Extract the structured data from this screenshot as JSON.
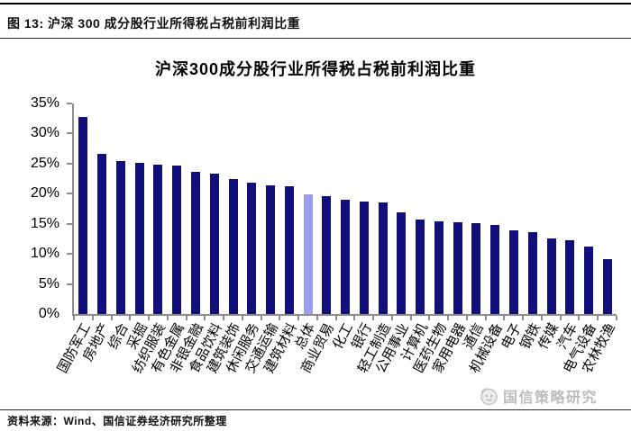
{
  "page": {
    "figure_label": "图 13: 沪深 300 成分股行业所得税占税前利润比重",
    "source_note": "资料来源：Wind、国信证券经济研究所整理",
    "watermark": "国信策略研究",
    "watermark_icon": "smiley-face-icon"
  },
  "chart_data": {
    "type": "bar",
    "title": "沪深300成分股行业所得税占税前利润比重",
    "categories": [
      "国防军工",
      "房地产",
      "综合",
      "采掘",
      "纺织服装",
      "有色金属",
      "非银金融",
      "食品饮料",
      "建筑装饰",
      "休闲服务",
      "交通运输",
      "建筑材料",
      "总体",
      "商业贸易",
      "化工",
      "银行",
      "轻工制造",
      "公用事业",
      "计算机",
      "医药生物",
      "家用电器",
      "通信",
      "机械设备",
      "电子",
      "钢铁",
      "传媒",
      "汽车",
      "电气设备",
      "农林牧渔"
    ],
    "values": [
      32.8,
      26.6,
      25.4,
      25.2,
      24.9,
      24.7,
      23.6,
      23.4,
      22.5,
      21.8,
      21.4,
      21.2,
      19.9,
      19.6,
      19.0,
      18.7,
      18.6,
      16.9,
      15.7,
      15.4,
      15.3,
      15.1,
      14.8,
      13.9,
      13.6,
      12.6,
      12.2,
      11.2,
      9.2
    ],
    "value_unit": "%",
    "highlight_category": "总体",
    "highlight_index": 12,
    "bar_color": "#11107B",
    "highlight_color": "#9D9DEF",
    "axis_color": "#8C8C8C",
    "xlabel": "",
    "ylabel": "",
    "ylim": [
      0,
      35
    ],
    "ytick_step": 5,
    "ytick_labels": [
      "0%",
      "5%",
      "10%",
      "15%",
      "20%",
      "25%",
      "30%",
      "35%"
    ],
    "grid": false,
    "legend": false,
    "x_label_rotation_deg": -62
  }
}
